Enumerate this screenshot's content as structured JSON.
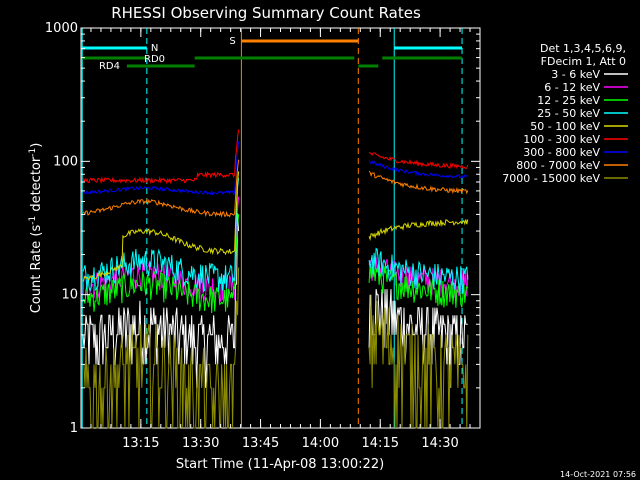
{
  "chart_data": {
    "type": "line",
    "title": "RHESSI Observing Summary Count Rates",
    "xlabel": "Start Time (11-Apr-08 13:00:22)",
    "ylabel_main": "Count Rate (s",
    "ylabel_exp1": "-1",
    "ylabel_mid": " detector",
    "ylabel_exp2": "-1",
    "ylabel_end": ")",
    "y_scale": "log",
    "ylim": [
      1,
      1000
    ],
    "xlim_minutes": [
      13.0,
      13.3,
      13.6,
      13.9,
      14.2,
      14.5,
      14.8
    ],
    "x_range": [
      "13:00",
      "14:40"
    ],
    "x_ticks": [
      "13:15",
      "13:30",
      "13:45",
      "14:00",
      "14:15",
      "14:30"
    ],
    "y_ticks": [
      "1",
      "10",
      "100",
      "1000"
    ],
    "legend_header": [
      "Det 1,3,4,5,6,9,",
      "FDecim 1, Att 0"
    ],
    "legend_placement": "right",
    "series": [
      {
        "name": "3 - 6 keV",
        "color": "#ffffff"
      },
      {
        "name": "6 - 12 keV",
        "color": "#ff00ff"
      },
      {
        "name": "12 - 25 keV",
        "color": "#00ff00"
      },
      {
        "name": "25 - 50 keV",
        "color": "#00ffff"
      },
      {
        "name": "50 - 100 keV",
        "color": "#d8d800"
      },
      {
        "name": "100 - 300 keV",
        "color": "#ff0000"
      },
      {
        "name": "300 - 800 keV",
        "color": "#0000ff"
      },
      {
        "name": "800 - 7000 keV",
        "color": "#ff8000"
      },
      {
        "name": "7000 - 15000 keV",
        "color": "#8c8c00"
      }
    ],
    "status_bars": [
      {
        "label": "N",
        "color": "#00ffff"
      },
      {
        "label": "S",
        "color": "#ff8000"
      },
      {
        "label": "RD0",
        "color": "#00ffff"
      },
      {
        "label": "RD4",
        "color": "#008000"
      }
    ],
    "timestamp": "14-Oct-2021 07:56"
  }
}
